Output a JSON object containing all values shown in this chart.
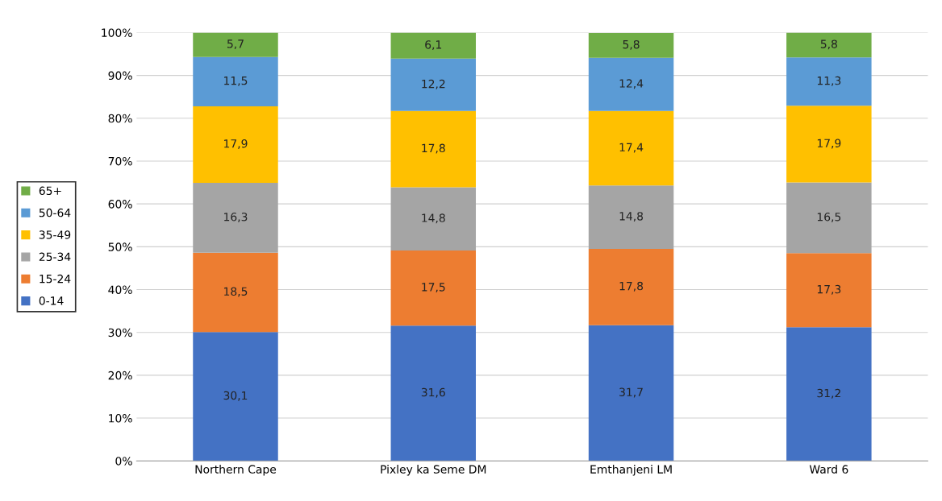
{
  "chart_data": {
    "type": "bar",
    "stacked": true,
    "categories": [
      "Northern Cape",
      "Pixley ka Seme DM",
      "Emthanjeni LM",
      "Ward 6"
    ],
    "series": [
      {
        "name": "0-14",
        "color": "#4472c4",
        "values": [
          30.1,
          31.6,
          31.7,
          31.2
        ],
        "value_labels": [
          "30,1",
          "31,6",
          "31,7",
          "31,2"
        ]
      },
      {
        "name": "15-24",
        "color": "#ed7d31",
        "values": [
          18.5,
          17.5,
          17.8,
          17.3
        ],
        "value_labels": [
          "18,5",
          "17,5",
          "17,8",
          "17,3"
        ]
      },
      {
        "name": "25-34",
        "color": "#a5a5a5",
        "values": [
          16.3,
          14.8,
          14.8,
          16.5
        ],
        "value_labels": [
          "16,3",
          "14,8",
          "14,8",
          "16,5"
        ]
      },
      {
        "name": "35-49",
        "color": "#ffc000",
        "values": [
          17.9,
          17.8,
          17.4,
          17.9
        ],
        "value_labels": [
          "17,9",
          "17,8",
          "17,4",
          "17,9"
        ]
      },
      {
        "name": "50-64",
        "color": "#5b9bd5",
        "values": [
          11.5,
          12.2,
          12.4,
          11.3
        ],
        "value_labels": [
          "11,5",
          "12,2",
          "12,4",
          "11,3"
        ]
      },
      {
        "name": "65+",
        "color": "#70ad47",
        "values": [
          5.7,
          6.1,
          5.8,
          5.8
        ],
        "value_labels": [
          "5,7",
          "6,1",
          "5,8",
          "5,8"
        ]
      }
    ],
    "ylim": [
      0,
      100
    ],
    "yticks": [
      {
        "value": 0,
        "label": "0%"
      },
      {
        "value": 10,
        "label": "10%"
      },
      {
        "value": 20,
        "label": "20%"
      },
      {
        "value": 30,
        "label": "30%"
      },
      {
        "value": 40,
        "label": "40%"
      },
      {
        "value": 50,
        "label": "50%"
      },
      {
        "value": 60,
        "label": "60%"
      },
      {
        "value": 70,
        "label": "70%"
      },
      {
        "value": 80,
        "label": "80%"
      },
      {
        "value": 90,
        "label": "90%"
      },
      {
        "value": 100,
        "label": "100%"
      }
    ],
    "grid": "y",
    "legend": "left"
  }
}
